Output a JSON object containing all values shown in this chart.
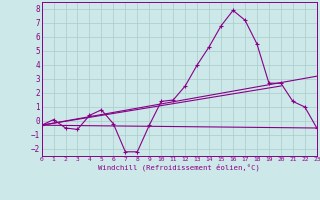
{
  "xlabel": "Windchill (Refroidissement éolien,°C)",
  "xlim": [
    0,
    23
  ],
  "ylim": [
    -2.5,
    8.5
  ],
  "yticks": [
    -2,
    -1,
    0,
    1,
    2,
    3,
    4,
    5,
    6,
    7,
    8
  ],
  "xticks": [
    0,
    1,
    2,
    3,
    4,
    5,
    6,
    7,
    8,
    9,
    10,
    11,
    12,
    13,
    14,
    15,
    16,
    17,
    18,
    19,
    20,
    21,
    22,
    23
  ],
  "background_color": "#cce8e8",
  "grid_color": "#aacccc",
  "line_color": "#880088",
  "curve1_x": [
    0,
    1,
    2,
    3,
    4,
    5,
    6,
    7,
    8,
    9,
    10,
    11,
    12,
    13,
    14,
    15,
    16,
    17,
    18,
    19,
    20,
    21,
    22,
    23
  ],
  "curve1_y": [
    -0.3,
    0.1,
    -0.5,
    -0.6,
    0.4,
    0.8,
    -0.2,
    -2.2,
    -2.2,
    -0.3,
    1.4,
    1.5,
    2.5,
    4.0,
    5.3,
    6.8,
    7.9,
    7.2,
    5.5,
    2.7,
    2.7,
    1.4,
    1.0,
    -0.5
  ],
  "line1_x": [
    0,
    23
  ],
  "line1_y": [
    -0.3,
    3.2
  ],
  "line2_x": [
    0,
    20
  ],
  "line2_y": [
    -0.3,
    2.5
  ],
  "line3_x": [
    0,
    23
  ],
  "line3_y": [
    -0.3,
    -0.5
  ]
}
